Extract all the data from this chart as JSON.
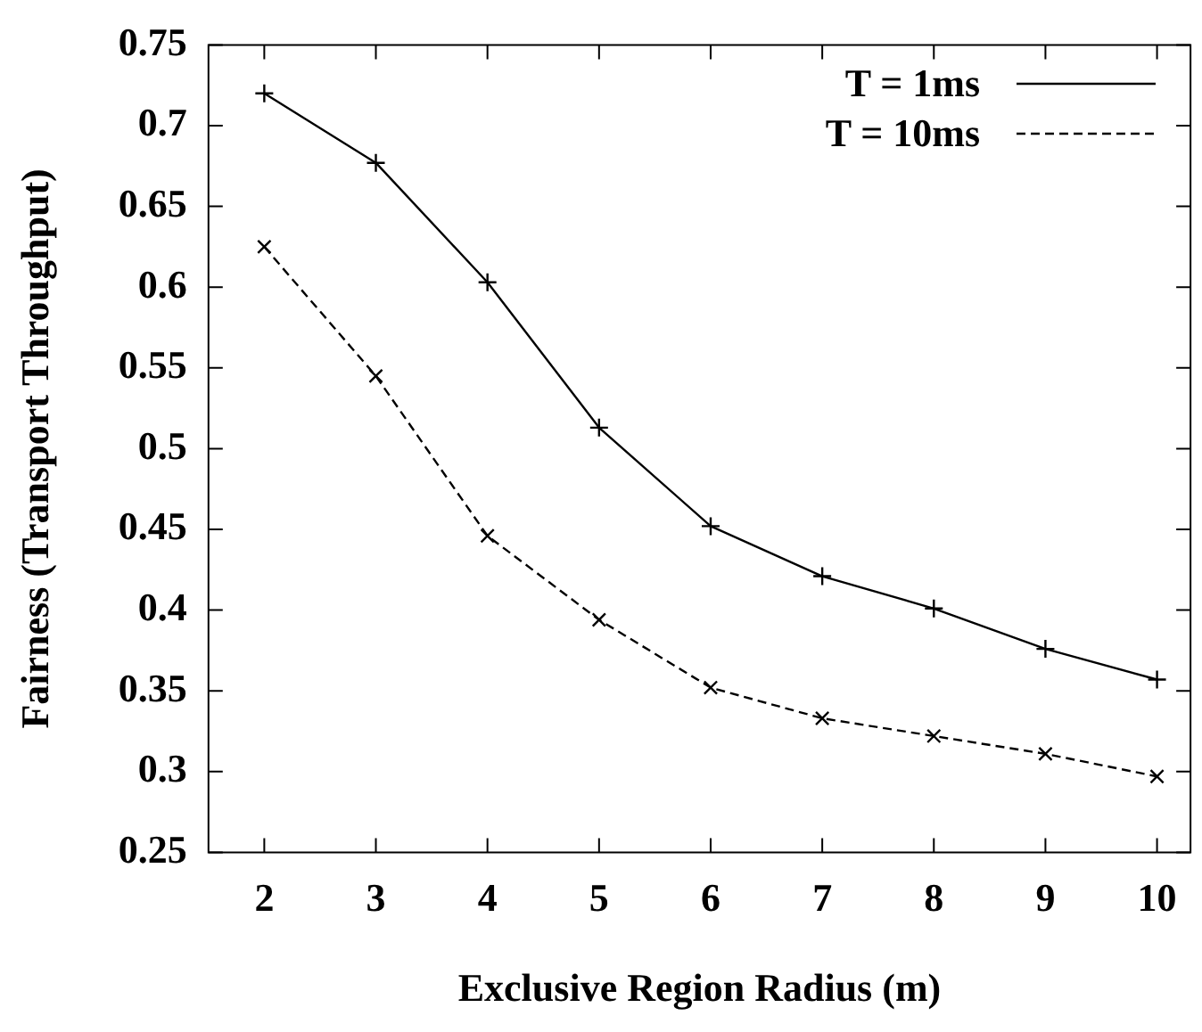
{
  "chart_data": {
    "type": "line",
    "xlabel": "Exclusive Region Radius (m)",
    "ylabel": "Fairness (Transport Throughput)",
    "x": [
      2,
      3,
      4,
      5,
      6,
      7,
      8,
      9,
      10
    ],
    "series": [
      {
        "name": "T = 1ms",
        "color": "#000000",
        "marker": "cross",
        "line_style": "solid",
        "values": [
          0.72,
          0.677,
          0.603,
          0.513,
          0.452,
          0.421,
          0.401,
          0.376,
          0.357
        ]
      },
      {
        "name": "T = 10ms",
        "color": "#000000",
        "marker": "x",
        "line_style": "dashed",
        "values": [
          0.625,
          0.545,
          0.446,
          0.394,
          0.352,
          0.333,
          0.322,
          0.311,
          0.297
        ]
      }
    ],
    "xlim": [
      1.5,
      10.3
    ],
    "xticks": [
      2,
      3,
      4,
      5,
      6,
      7,
      8,
      9,
      10
    ],
    "ylim": [
      0.25,
      0.75
    ],
    "yticks": [
      0.25,
      0.3,
      0.35,
      0.4,
      0.45,
      0.5,
      0.55,
      0.6,
      0.65,
      0.7,
      0.75
    ],
    "grid": false,
    "legend": "top right"
  }
}
